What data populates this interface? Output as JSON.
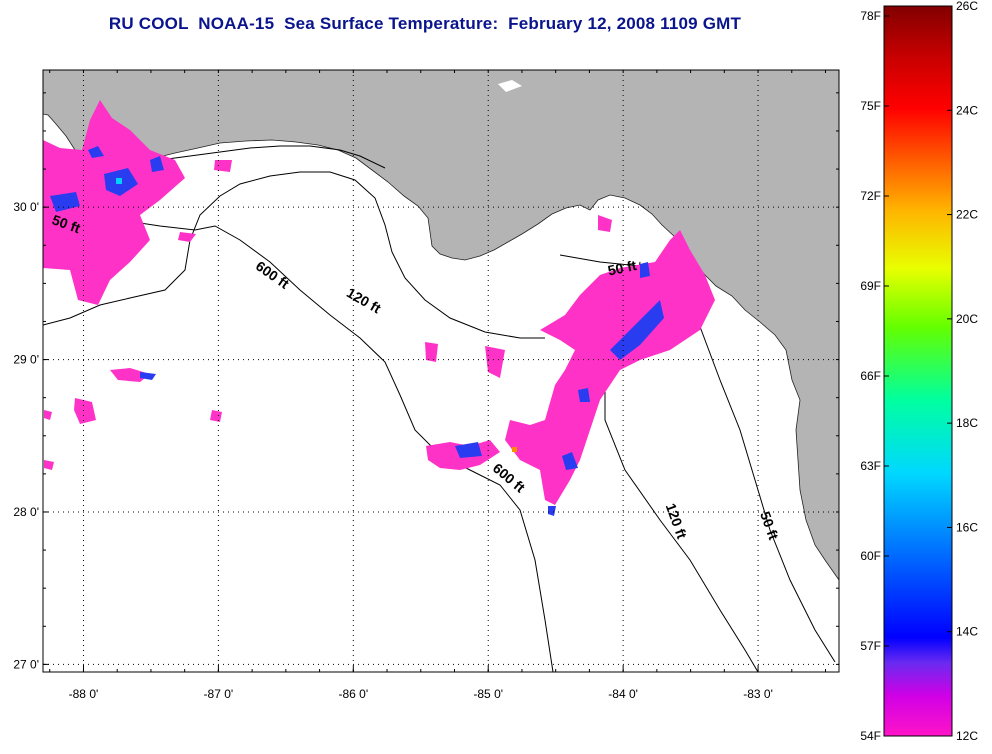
{
  "title": "RU COOL  NOAA-15  Sea Surface Temperature:  February 12, 2008 1109 GMT",
  "map": {
    "lon_range": [
      -88.3,
      -82.4
    ],
    "lat_range": [
      26.95,
      30.9
    ],
    "lon_ticks": [
      {
        "value": -88,
        "label": "-88 0'"
      },
      {
        "value": -87,
        "label": "-87 0'"
      },
      {
        "value": -86,
        "label": "-86 0'"
      },
      {
        "value": -85,
        "label": "-85 0'"
      },
      {
        "value": -84,
        "label": "-84 0'"
      },
      {
        "value": -83,
        "label": "-83 0'"
      }
    ],
    "lat_ticks": [
      {
        "value": 30,
        "label": "30 0'"
      },
      {
        "value": 29,
        "label": "29 0'"
      },
      {
        "value": 28,
        "label": "28 0'"
      },
      {
        "value": 27,
        "label": "27 0'"
      }
    ],
    "colors": {
      "land": "#b4b4b4",
      "water": "#ffffff",
      "cloud_pink": "#ff32c8",
      "cool_blue": "#2a3cf0"
    },
    "contour_labels": [
      {
        "text": "50 ft",
        "lon": -88.14,
        "lat": 29.86,
        "angle": 20
      },
      {
        "text": "600 ft",
        "lon": -86.62,
        "lat": 29.53,
        "angle": 35
      },
      {
        "text": "120 ft",
        "lon": -85.94,
        "lat": 29.36,
        "angle": 30
      },
      {
        "text": "50 ft",
        "lon": -84.0,
        "lat": 29.57,
        "angle": -12
      },
      {
        "text": "600 ft",
        "lon": -84.87,
        "lat": 28.2,
        "angle": 40
      },
      {
        "text": "120 ft",
        "lon": -83.64,
        "lat": 27.93,
        "angle": 70
      },
      {
        "text": "50 ft",
        "lon": -82.95,
        "lat": 27.9,
        "angle": 70
      }
    ]
  },
  "colorbar": {
    "f_labels": [
      "78F",
      "75F",
      "72F",
      "69F",
      "66F",
      "63F",
      "60F",
      "57F",
      "54F"
    ],
    "c_labels": [
      "26C",
      "24C",
      "22C",
      "20C",
      "18C",
      "16C",
      "14C",
      "12C"
    ],
    "c_range": [
      12,
      26
    ]
  }
}
